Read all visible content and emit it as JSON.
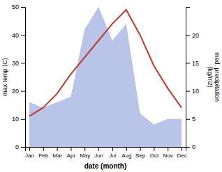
{
  "chart_data": {
    "type": "line",
    "xlabel": "date (month)",
    "ylabel": "max temp (C)",
    "y2label": "med. precipitation\n(kg/m2)",
    "categories": [
      "Jan",
      "Feb",
      "Mar",
      "Apr",
      "May",
      "Jun",
      "Jul",
      "Aug",
      "Sep",
      "Oct",
      "Nov",
      "Dec"
    ],
    "series": [
      {
        "type": "area",
        "axis": "y2",
        "color": "#b8c4e8",
        "values": [
          8,
          7,
          8,
          9,
          21,
          25,
          19,
          22,
          6,
          4,
          5,
          5
        ]
      },
      {
        "type": "line",
        "color": "#c0392b",
        "values": [
          11,
          14,
          19,
          26,
          32,
          38,
          44,
          49,
          40,
          29,
          21,
          14
        ]
      }
    ],
    "ylim": [
      0,
      50
    ],
    "yticks": [
      0,
      10,
      20,
      30,
      40,
      50
    ],
    "y2lim": [
      0,
      25
    ],
    "y2ticks": [
      0,
      5,
      10,
      15,
      20
    ]
  }
}
